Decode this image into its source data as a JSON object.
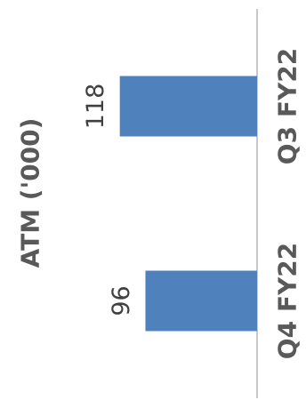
{
  "chart_data": {
    "type": "bar",
    "orientation": "rotated",
    "title": "",
    "ylabel": "ATM ('000)",
    "categories": [
      "Q3 FY22",
      "Q4 FY22"
    ],
    "values": [
      118,
      96
    ],
    "ylim": [
      0,
      130
    ],
    "grid": false,
    "legend": "none",
    "data_labels": true,
    "colors": {
      "bar": "#4f81bd",
      "axis_line": "#c8c8c8",
      "label_text": "#595959",
      "value_text": "#404040"
    }
  }
}
